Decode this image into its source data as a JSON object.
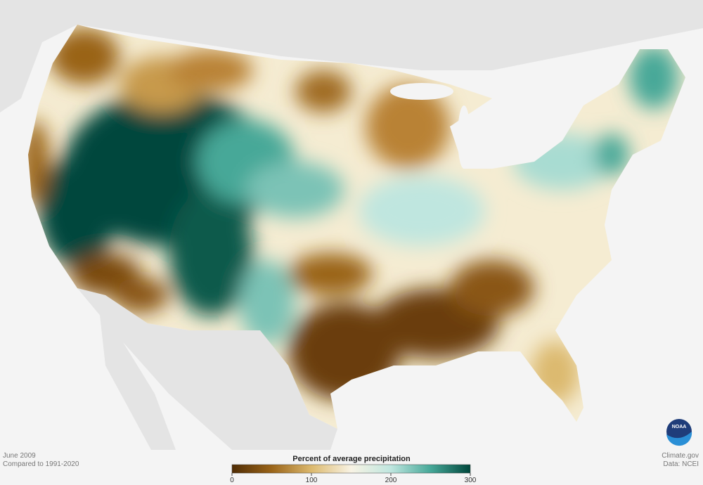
{
  "footer": {
    "date": "June 2009",
    "baseline": "Compared to 1991-2020",
    "credit": "Climate.gov",
    "source": "Data: NCEI"
  },
  "legend": {
    "title": "Percent of average precipitation",
    "min": 0,
    "max": 300,
    "ticks": [
      0,
      100,
      200,
      300
    ],
    "colors": [
      "#4f2c04",
      "#9a6418",
      "#dcb96e",
      "#f8f3e4",
      "#bfe6df",
      "#46a898",
      "#00473c"
    ]
  },
  "logo": "NOAA"
}
